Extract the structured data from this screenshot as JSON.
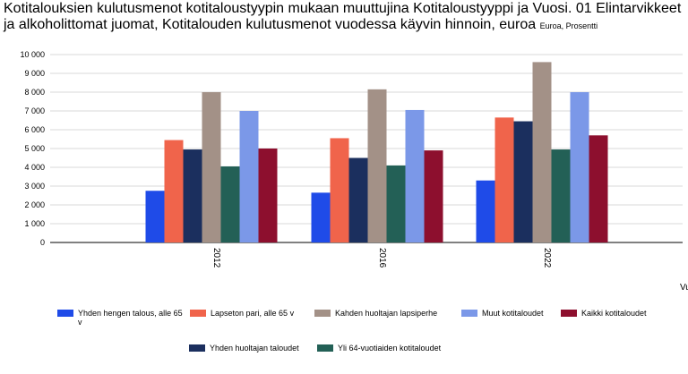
{
  "title": "Kotitalouksien kulutusmenot kotitaloustyypin mukaan muuttujina Kotitaloustyyppi ja Vuosi. 01 Elintarvikkeet ja alkoholittomat juomat, Kotitalouden kulutusmenot vuodessa käyvin hinnoin, euroa",
  "subtitle": "Euroa, Prosentti",
  "chart_data": {
    "type": "bar",
    "title": "Kotitalouksien kulutusmenot kotitaloustyypin mukaan muuttujina Kotitaloustyyppi ja Vuosi. 01 Elintarvikkeet ja alkoholittomat juomat, Kotitalouden kulutusmenot vuodessa käyvin hinnoin, euroa",
    "subtitle": "Euroa, Prosentti",
    "xlabel": "Vuosi",
    "categories": [
      "2012",
      "2016",
      "2022"
    ],
    "ylim": [
      0,
      10000
    ],
    "yticks": [
      "0",
      "1 000",
      "2 000",
      "3 000",
      "4 000",
      "5 000",
      "6 000",
      "7 000",
      "8 000",
      "9 000",
      "10 000"
    ],
    "grid": true,
    "legend_position": "bottom",
    "series": [
      {
        "name": "Yhden hengen talous, alle 65 v",
        "color": "#1f4be8",
        "values": [
          2750,
          2650,
          3300
        ]
      },
      {
        "name": "Lapseton pari, alle 65 v",
        "color": "#f0644b",
        "values": [
          5450,
          5550,
          6650
        ]
      },
      {
        "name": "Yhden huoltajan taloudet",
        "color": "#1b2f5e",
        "values": [
          4950,
          4500,
          6450
        ]
      },
      {
        "name": "Kahden huoltajan lapsiperhe",
        "color": "#a39187",
        "values": [
          8000,
          8150,
          9600
        ]
      },
      {
        "name": "Yli 64-vuotiaiden kotitaloudet",
        "color": "#236056",
        "values": [
          4050,
          4100,
          4950
        ]
      },
      {
        "name": "Muut kotitaloudet",
        "color": "#7b98e8",
        "values": [
          7000,
          7050,
          8000
        ]
      },
      {
        "name": "Kaikki kotitaloudet",
        "color": "#8d0f2e",
        "values": [
          5000,
          4900,
          5700
        ]
      }
    ]
  }
}
